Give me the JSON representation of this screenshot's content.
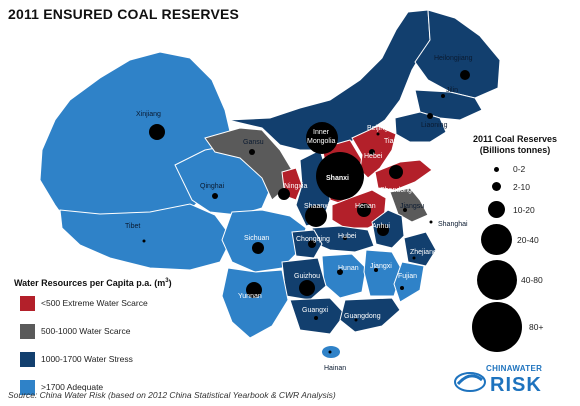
{
  "title": "2011 ENSURED COAL RESERVES",
  "legend": {
    "title": "Water Resources per Capita p.a. (m",
    "title_sup": "3",
    "title_close": ")",
    "items": [
      {
        "label": "<500 Extreme Water Scarce",
        "color": "#b3202a"
      },
      {
        "label": "500-1000 Water Scarce",
        "color": "#5a5a5a"
      },
      {
        "label": "1000-1700 Water Stress",
        "color": "#123f6e"
      },
      {
        "label": ">1700 Adequate",
        "color": "#2f82c8"
      }
    ]
  },
  "reserves_legend": {
    "title_line1": "2011 Coal Reserves",
    "title_line2": "(Billions tonnes)",
    "items": [
      {
        "label": "0-2"
      },
      {
        "label": "2-10"
      },
      {
        "label": "10-20"
      },
      {
        "label": "20-40"
      },
      {
        "label": "40-80"
      },
      {
        "label": "80+"
      }
    ]
  },
  "provinces": {
    "heilongjiang": "Heilongjiang",
    "jilin": "Jilin",
    "liaoning": "Liaoning",
    "beijing": "Beijing",
    "tianjin": "Tianjin",
    "hebei": "Hebei",
    "shandong": "Shandong",
    "shanxi": "Shanxi",
    "inner_mongolia_1": "Inner",
    "inner_mongolia_2": "Mongolia",
    "ningxia": "Ningxia",
    "gansu": "Gansu",
    "qinghai": "Qinghai",
    "xinjiang": "Xinjiang",
    "tibet": "Tibet",
    "shaanxi": "Shaanxi",
    "henan": "Henan",
    "jiangsu": "Jiangsu",
    "shanghai": "Shanghai",
    "anhui": "Anhui",
    "hubei": "Hubei",
    "sichuan": "Sichuan",
    "chongqing": "Chongqing",
    "zhejiang": "Zhejiang",
    "hunan": "Hunan",
    "jiangxi": "Jiangxi",
    "fujian": "Fujian",
    "guizhou": "Guizhou",
    "yunnan": "Yunnan",
    "guangxi": "Guangxi",
    "guangdong": "Guangdong",
    "hainan": "Hainan"
  },
  "source": "Source: China Water Risk (based on 2012 China Statistical Yearbook & CWR Analysis)",
  "logo": {
    "small": "CHINAWATER",
    "big": "RISK"
  }
}
